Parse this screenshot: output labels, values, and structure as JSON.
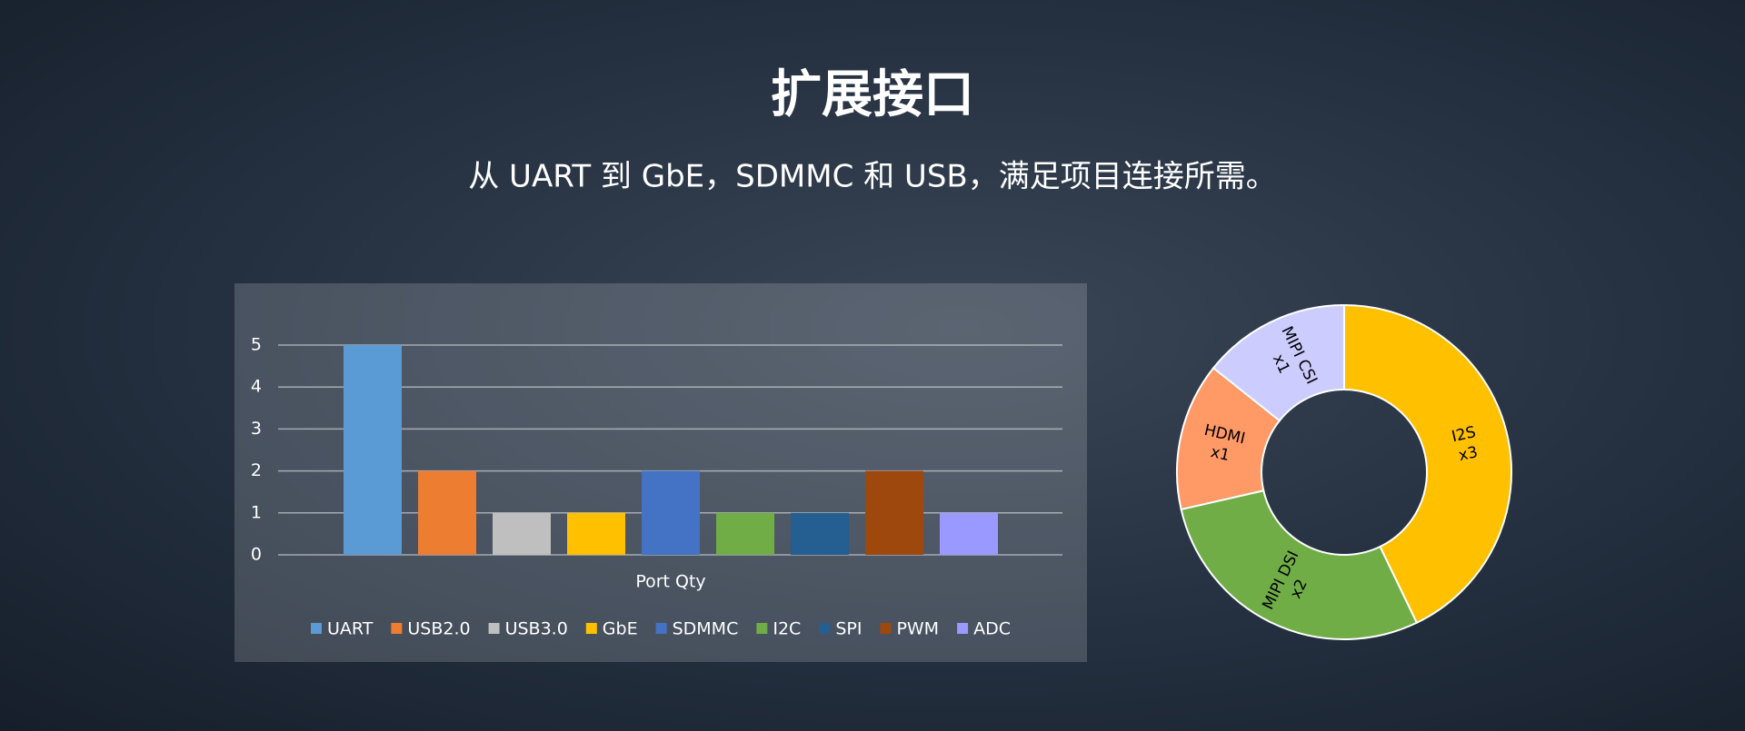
{
  "title": "扩展接口",
  "subtitle": "从 UART 到 GbE，SDMMC 和 USB，满足项目连接所需。",
  "chart_data": [
    {
      "type": "bar",
      "categories": [
        "Port Qty"
      ],
      "series": [
        {
          "name": "UART",
          "color": "#5b9bd5",
          "values": [
            5
          ]
        },
        {
          "name": "USB2.0",
          "color": "#ed7d31",
          "values": [
            2
          ]
        },
        {
          "name": "USB3.0",
          "color": "#bfbfbf",
          "values": [
            1
          ]
        },
        {
          "name": "GbE",
          "color": "#ffc000",
          "values": [
            1
          ]
        },
        {
          "name": "SDMMC",
          "color": "#4472c4",
          "values": [
            2
          ]
        },
        {
          "name": "I2C",
          "color": "#70ad47",
          "values": [
            1
          ]
        },
        {
          "name": "SPI",
          "color": "#255e91",
          "values": [
            1
          ]
        },
        {
          "name": "PWM",
          "color": "#9e480e",
          "values": [
            2
          ]
        },
        {
          "name": "ADC",
          "color": "#9999ff",
          "values": [
            1
          ]
        }
      ],
      "ylim": [
        0,
        5
      ],
      "yticks": [
        0,
        1,
        2,
        3,
        4,
        5
      ],
      "grid": true,
      "legend": "bottom"
    },
    {
      "type": "donut",
      "categories": [
        "I2S",
        "MIPI DSI",
        "HDMI",
        "MIPI CSI"
      ],
      "values": [
        3,
        2,
        1,
        1
      ],
      "value_labels": [
        "x3",
        "x2",
        "x1",
        "x1"
      ],
      "colors": [
        "#ffc000",
        "#70ad47",
        "#ff9966",
        "#ccccff"
      ]
    }
  ]
}
